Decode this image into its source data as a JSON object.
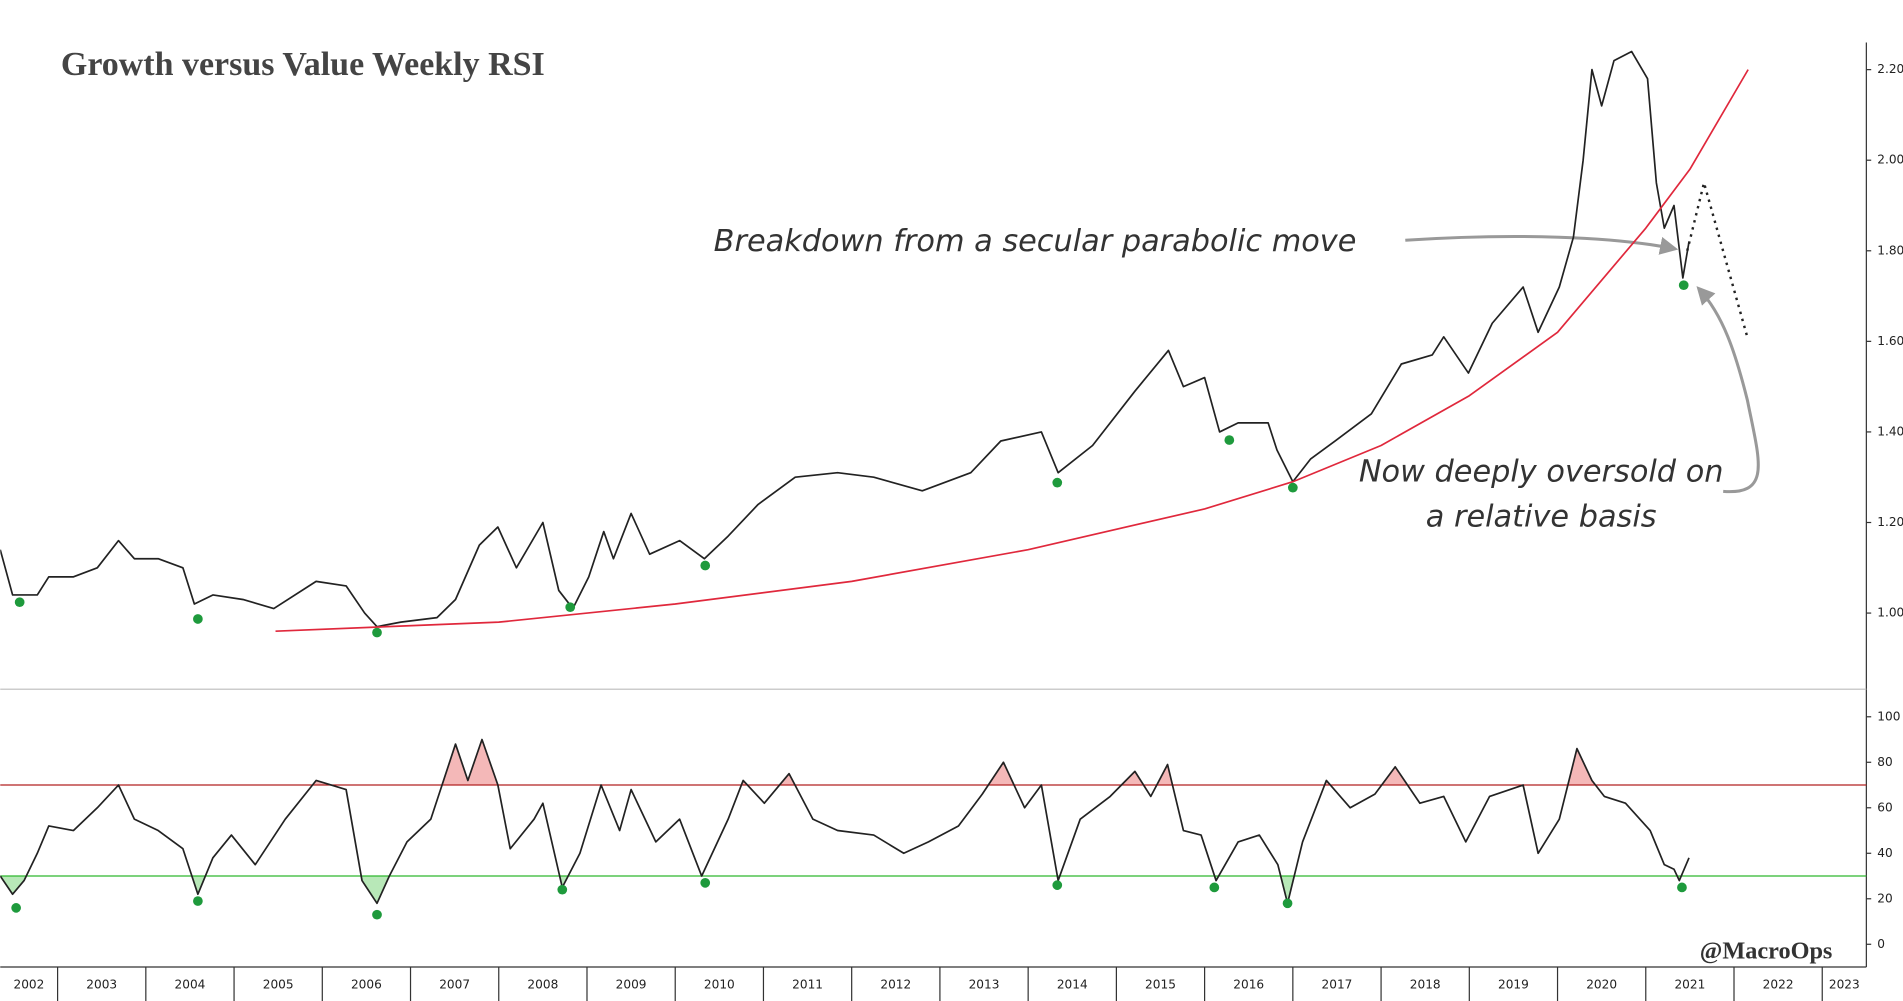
{
  "chart_data": [
    {
      "type": "line",
      "title": "Growth versus Value Weekly RSI",
      "xlim": [
        2002.35,
        2023.5
      ],
      "ylim": [
        0.84,
        2.26
      ],
      "yticks": [
        {
          "value": 1.0,
          "label": "1.00"
        },
        {
          "value": 1.2,
          "label": "1.20"
        },
        {
          "value": 1.4,
          "label": "1.40"
        },
        {
          "value": 1.6,
          "label": "1.60"
        },
        {
          "value": 1.8,
          "label": "1.80"
        },
        {
          "value": 2.0,
          "label": "2.00"
        },
        {
          "value": 2.2,
          "label": "2.20"
        }
      ],
      "series": [
        {
          "color": "#222222",
          "style": "solid",
          "x": [
            2002.35,
            2002.49,
            2002.77,
            2002.9,
            2003.18,
            2003.45,
            2003.69,
            2003.87,
            2004.14,
            2004.42,
            2004.55,
            2004.76,
            2005.1,
            2005.45,
            2005.93,
            2006.27,
            2006.48,
            2006.62,
            2006.89,
            2007.3,
            2007.51,
            2007.78,
            2007.99,
            2008.2,
            2008.5,
            2008.68,
            2008.84,
            2009.02,
            2009.19,
            2009.3,
            2009.5,
            2009.71,
            2010.05,
            2010.33,
            2010.6,
            2010.94,
            2011.36,
            2011.84,
            2012.25,
            2012.8,
            2013.35,
            2013.69,
            2014.15,
            2014.34,
            2014.73,
            2015.21,
            2015.59,
            2015.76,
            2016.0,
            2016.17,
            2016.38,
            2016.72,
            2016.82,
            2017.0,
            2017.2,
            2017.48,
            2017.89,
            2018.23,
            2018.58,
            2018.71,
            2018.99,
            2019.26,
            2019.61,
            2019.78,
            2020.02,
            2020.18,
            2020.29,
            2020.39,
            2020.5,
            2020.64,
            2020.84,
            2021.02,
            2021.12,
            2021.21,
            2021.32,
            2021.42,
            2021.49
          ],
          "values": [
            1.14,
            1.04,
            1.04,
            1.08,
            1.08,
            1.1,
            1.16,
            1.12,
            1.12,
            1.1,
            1.02,
            1.04,
            1.03,
            1.01,
            1.07,
            1.06,
            1.0,
            0.97,
            0.98,
            0.99,
            1.03,
            1.15,
            1.19,
            1.1,
            1.2,
            1.05,
            1.01,
            1.08,
            1.18,
            1.12,
            1.22,
            1.13,
            1.16,
            1.12,
            1.17,
            1.24,
            1.3,
            1.31,
            1.3,
            1.27,
            1.31,
            1.38,
            1.4,
            1.31,
            1.37,
            1.49,
            1.58,
            1.5,
            1.52,
            1.4,
            1.42,
            1.42,
            1.36,
            1.29,
            1.34,
            1.38,
            1.44,
            1.55,
            1.57,
            1.61,
            1.53,
            1.64,
            1.72,
            1.62,
            1.72,
            1.83,
            2.0,
            2.2,
            2.12,
            2.22,
            2.24,
            2.18,
            1.95,
            1.85,
            1.9,
            1.74,
            1.82
          ]
        },
        {
          "color": "#e0283c",
          "style": "solid",
          "x": [
            2005.47,
            2008,
            2010,
            2012,
            2014,
            2016,
            2017,
            2018,
            2019,
            2020,
            2021,
            2021.5,
            2022.16
          ],
          "values": [
            0.96,
            0.98,
            1.02,
            1.07,
            1.14,
            1.23,
            1.29,
            1.37,
            1.48,
            1.62,
            1.85,
            1.98,
            2.2
          ]
        },
        {
          "color": "#222222",
          "style": "dotted",
          "x": [
            2021.47,
            2021.66,
            2022.15
          ],
          "values": [
            1.8,
            1.95,
            1.61
          ]
        }
      ],
      "markers": {
        "color": "#1e9a3c",
        "x": [
          2002.57,
          2004.59,
          2006.62,
          2008.81,
          2010.34,
          2014.33,
          2016.28,
          2017.0,
          2021.43
        ],
        "values": [
          1.024,
          0.987,
          0.957,
          1.013,
          1.105,
          1.288,
          1.382,
          1.277,
          1.724
        ]
      },
      "annotations": [
        "Breakdown from a secular parabolic move",
        "Now deeply oversold on",
        "a relative basis"
      ]
    },
    {
      "type": "line",
      "xlim": [
        2002.35,
        2023.5
      ],
      "ylim": [
        -10,
        110
      ],
      "yticks": [
        0,
        20,
        40,
        60,
        80,
        100
      ],
      "xticks": [
        2002,
        2003,
        2004,
        2005,
        2006,
        2007,
        2008,
        2009,
        2010,
        2011,
        2012,
        2013,
        2014,
        2015,
        2016,
        2017,
        2018,
        2019,
        2020,
        2021,
        2022,
        2023
      ],
      "series": [
        {
          "color": "#222222",
          "style": "solid",
          "x": [
            2002.35,
            2002.49,
            2002.62,
            2002.77,
            2002.9,
            2003.18,
            2003.45,
            2003.69,
            2003.87,
            2004.14,
            2004.42,
            2004.59,
            2004.76,
            2004.97,
            2005.24,
            2005.58,
            2005.93,
            2006.27,
            2006.45,
            2006.62,
            2006.76,
            2006.96,
            2007.23,
            2007.51,
            2007.65,
            2007.81,
            2007.99,
            2008.13,
            2008.4,
            2008.5,
            2008.72,
            2008.92,
            2009.16,
            2009.37,
            2009.5,
            2009.78,
            2010.05,
            2010.3,
            2010.6,
            2010.77,
            2011.01,
            2011.29,
            2011.56,
            2011.84,
            2012.25,
            2012.59,
            2012.87,
            2013.21,
            2013.48,
            2013.72,
            2013.96,
            2014.15,
            2014.34,
            2014.59,
            2014.93,
            2015.21,
            2015.39,
            2015.58,
            2015.76,
            2015.96,
            2016.13,
            2016.38,
            2016.62,
            2016.83,
            2016.94,
            2017.11,
            2017.38,
            2017.65,
            2017.93,
            2018.16,
            2018.44,
            2018.71,
            2018.96,
            2019.23,
            2019.61,
            2019.78,
            2020.02,
            2020.22,
            2020.39,
            2020.53,
            2020.77,
            2021.05,
            2021.21,
            2021.32,
            2021.38,
            2021.49
          ],
          "values": [
            30,
            22,
            28,
            40,
            52,
            50,
            60,
            70,
            55,
            50,
            42,
            22,
            38,
            48,
            35,
            55,
            72,
            68,
            28,
            18,
            30,
            45,
            55,
            88,
            72,
            90,
            70,
            42,
            55,
            62,
            25,
            40,
            70,
            50,
            68,
            45,
            55,
            30,
            55,
            72,
            62,
            75,
            55,
            50,
            48,
            40,
            45,
            52,
            66,
            80,
            60,
            70,
            28,
            55,
            65,
            76,
            65,
            79,
            50,
            48,
            28,
            45,
            48,
            35,
            18,
            45,
            72,
            60,
            66,
            78,
            62,
            65,
            45,
            65,
            70,
            40,
            55,
            86,
            72,
            65,
            62,
            50,
            35,
            33,
            28,
            38
          ]
        }
      ],
      "thresholds": [
        {
          "value": 70,
          "color": "#b22222",
          "fill": "#f4b8b8"
        },
        {
          "value": 30,
          "color": "#2eb82e",
          "fill": "#b8e8b8"
        }
      ],
      "markers": {
        "color": "#1e9a3c",
        "x": [
          2002.53,
          2004.59,
          2006.62,
          2008.72,
          2010.34,
          2014.33,
          2016.11,
          2016.94,
          2021.41
        ],
        "values": [
          16,
          19,
          13,
          24,
          27,
          26,
          25,
          18,
          25
        ]
      },
      "watermark": "@MacroOps"
    }
  ]
}
